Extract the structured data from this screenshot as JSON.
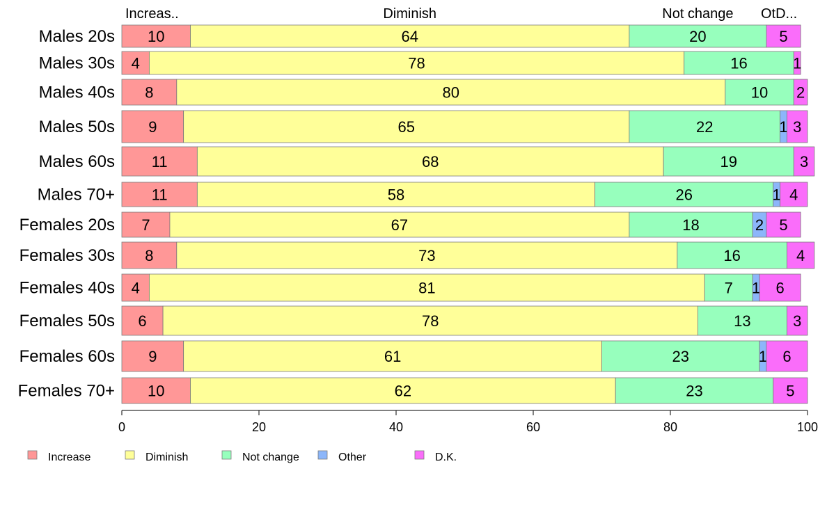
{
  "chart_data": {
    "type": "bar",
    "orientation": "horizontal",
    "stacked": "percent",
    "categories": [
      "Males 20s",
      "Males 30s",
      "Males 40s",
      "Males 50s",
      "Males 60s",
      "Males 70+",
      "Females 20s",
      "Females 30s",
      "Females 40s",
      "Females 50s",
      "Females 60s",
      "Females 70+"
    ],
    "series": [
      {
        "name": "Increase",
        "color": "#ff9797",
        "values": [
          10,
          4,
          8,
          9,
          11,
          11,
          7,
          8,
          4,
          6,
          9,
          10
        ]
      },
      {
        "name": "Diminish",
        "color": "#ffff99",
        "values": [
          64,
          78,
          80,
          65,
          68,
          58,
          67,
          73,
          81,
          78,
          61,
          62
        ]
      },
      {
        "name": "Not change",
        "color": "#97ffbd",
        "values": [
          20,
          16,
          10,
          22,
          19,
          26,
          18,
          16,
          7,
          13,
          23,
          23
        ]
      },
      {
        "name": "Other",
        "color": "#8cb6fa",
        "values": [
          0,
          0,
          0,
          1,
          0,
          1,
          2,
          0,
          1,
          0,
          1,
          0
        ]
      },
      {
        "name": "D.K.",
        "color": "#fa6dfa",
        "values": [
          5,
          1,
          2,
          3,
          3,
          4,
          5,
          4,
          6,
          3,
          6,
          5
        ]
      }
    ],
    "top_labels": [
      "Increas..",
      "Diminish",
      "Not change",
      "OtD..."
    ],
    "xlim": [
      0,
      100
    ],
    "xticks": [
      0,
      20,
      40,
      60,
      80,
      100
    ],
    "legend_position": "bottom",
    "grid": false
  }
}
